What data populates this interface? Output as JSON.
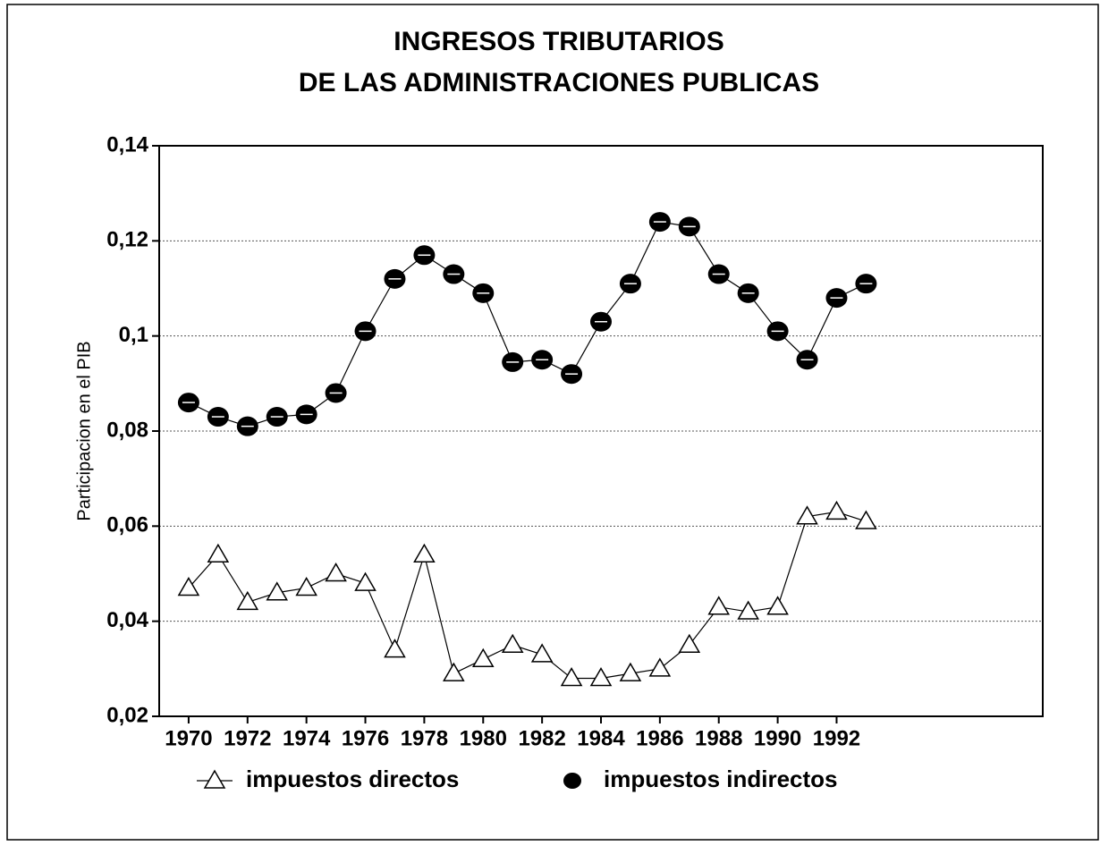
{
  "chart_data": {
    "type": "line",
    "title": [
      "INGRESOS TRIBUTARIOS",
      "DE LAS ADMINISTRACIONES PUBLICAS"
    ],
    "y_label": "Participacion en el PIB",
    "x": [
      1970,
      1971,
      1972,
      1973,
      1974,
      1975,
      1976,
      1977,
      1978,
      1979,
      1980,
      1981,
      1982,
      1983,
      1984,
      1985,
      1986,
      1987,
      1988,
      1989,
      1990,
      1991,
      1992,
      1993
    ],
    "series": [
      {
        "name": "impuestos directos",
        "color": "#000000",
        "marker": "triangle",
        "values": [
          0.047,
          0.054,
          0.044,
          0.046,
          0.047,
          0.05,
          0.048,
          0.034,
          0.054,
          0.029,
          0.032,
          0.035,
          0.033,
          0.028,
          0.028,
          0.029,
          0.03,
          0.035,
          0.043,
          0.042,
          0.043,
          0.062,
          0.063,
          0.061
        ]
      },
      {
        "name": "impuestos indirectos",
        "color": "#000000",
        "marker": "circle",
        "values": [
          0.086,
          0.083,
          0.081,
          0.083,
          0.0835,
          0.088,
          0.101,
          0.112,
          0.117,
          0.113,
          0.109,
          0.0945,
          0.095,
          0.092,
          0.103,
          0.111,
          0.124,
          0.123,
          0.113,
          0.109,
          0.101,
          0.095,
          0.108,
          0.111
        ]
      }
    ],
    "xlim": [
      1969,
      1999
    ],
    "xticks": [
      1970,
      1972,
      1974,
      1976,
      1978,
      1980,
      1982,
      1984,
      1986,
      1988,
      1990,
      1992
    ],
    "ylim": [
      0.02,
      0.14
    ],
    "yticks": [
      {
        "value": 0.02,
        "label": "0,02"
      },
      {
        "value": 0.04,
        "label": "0,04"
      },
      {
        "value": 0.06,
        "label": "0,06"
      },
      {
        "value": 0.08,
        "label": "0,08"
      },
      {
        "value": 0.1,
        "label": "0,1"
      },
      {
        "value": 0.12,
        "label": "0,12"
      },
      {
        "value": 0.14,
        "label": "0,14"
      }
    ],
    "grid": true
  }
}
